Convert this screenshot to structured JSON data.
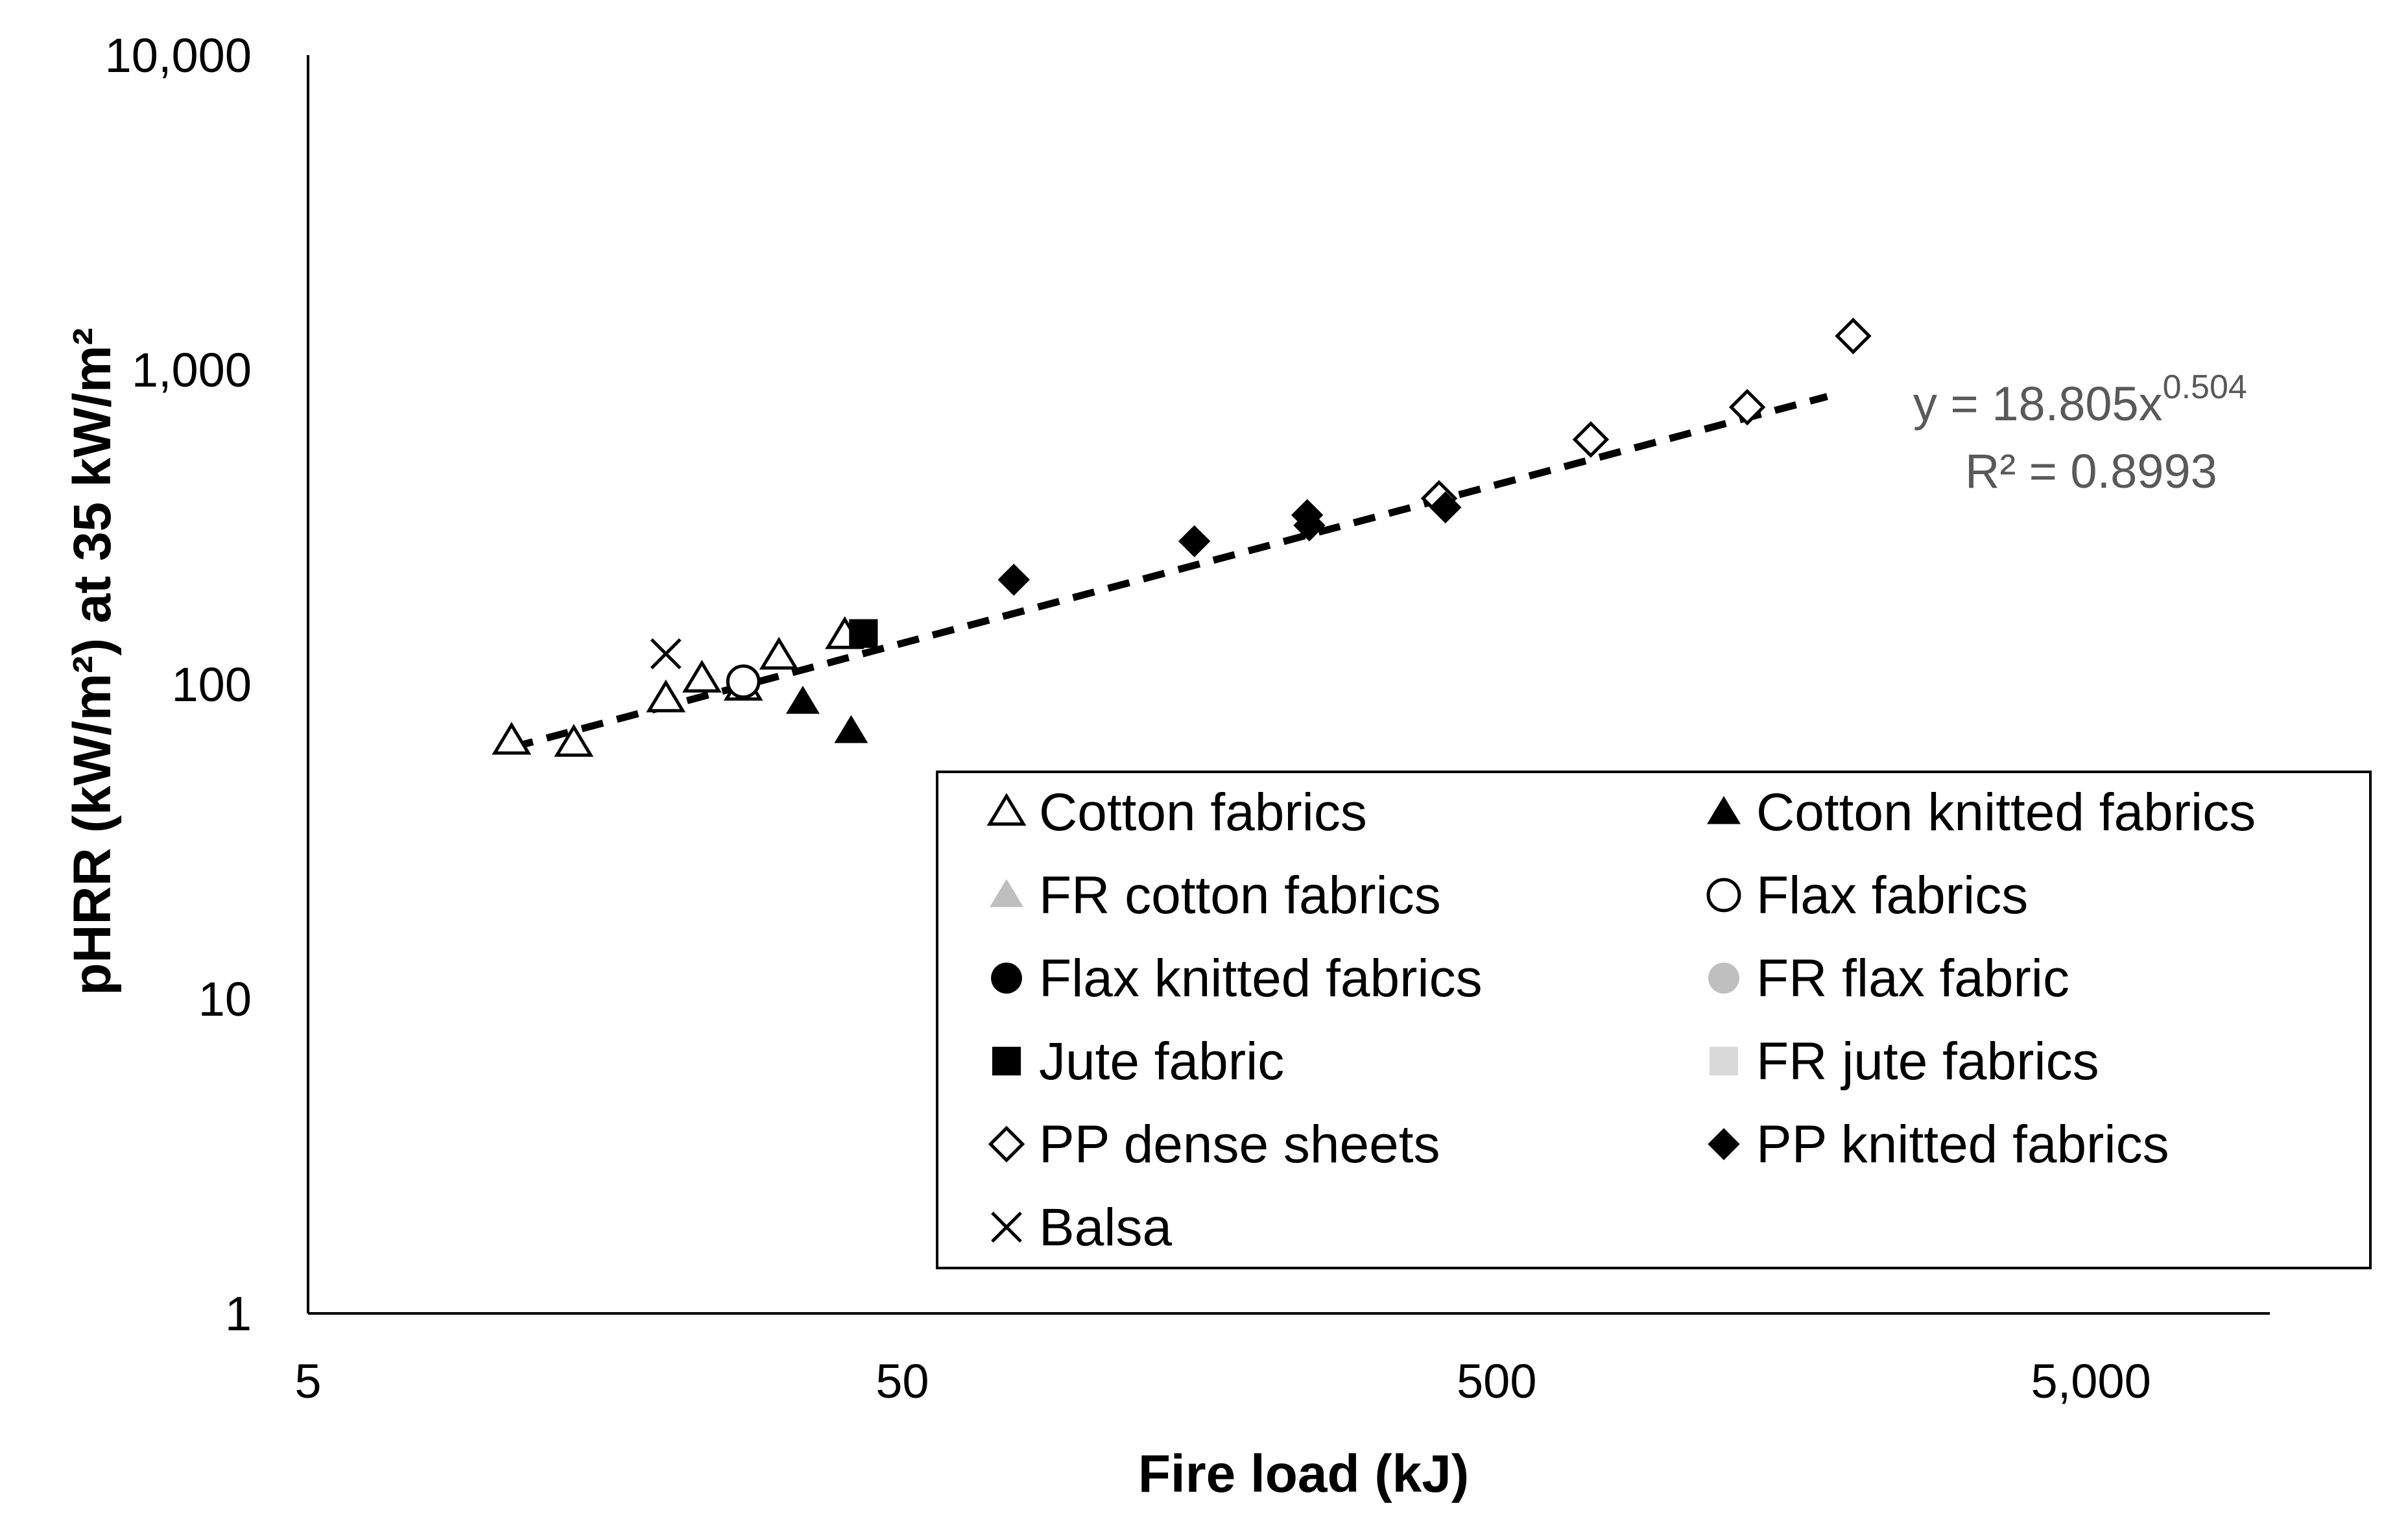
{
  "chart_data": {
    "type": "scatter",
    "x_scale": "log",
    "y_scale": "log",
    "xlabel": "Fire load (kJ)",
    "ylabel": "pHRR (kW/m²) at 35 kW/m²",
    "xlim": [
      5,
      10000
    ],
    "ylim": [
      1,
      10000
    ],
    "x_ticks": [
      {
        "value": 5,
        "label": "5"
      },
      {
        "value": 50,
        "label": "50"
      },
      {
        "value": 500,
        "label": "500"
      },
      {
        "value": 5000,
        "label": "5,000"
      }
    ],
    "y_ticks": [
      {
        "value": 1,
        "label": "1"
      },
      {
        "value": 10,
        "label": "10"
      },
      {
        "value": 100,
        "label": "100"
      },
      {
        "value": 1000,
        "label": "1,000"
      },
      {
        "value": 10000,
        "label": "10,000"
      }
    ],
    "legend_position": "bottom-right",
    "series": [
      {
        "name": "Cotton fabrics",
        "marker": "triangle-open",
        "color": "#000000",
        "points": [
          [
            11,
            66
          ],
          [
            14,
            65
          ],
          [
            20,
            90
          ],
          [
            23,
            104
          ],
          [
            27,
            98
          ],
          [
            31,
            123
          ],
          [
            40,
            143
          ]
        ]
      },
      {
        "name": "Cotton knitted fabrics",
        "marker": "triangle-filled",
        "color": "#000000",
        "points": [
          [
            34,
            88
          ],
          [
            41,
            71
          ]
        ]
      },
      {
        "name": "FR cotton fabrics",
        "marker": "triangle-filled",
        "color": "#bfbfbf",
        "points": []
      },
      {
        "name": "Flax fabrics",
        "marker": "circle-open",
        "color": "#000000",
        "points": [
          [
            27,
            102
          ]
        ]
      },
      {
        "name": "Flax knitted fabrics",
        "marker": "circle-filled",
        "color": "#000000",
        "points": []
      },
      {
        "name": "FR flax fabric",
        "marker": "circle-filled",
        "color": "#bfbfbf",
        "points": []
      },
      {
        "name": "Jute fabric",
        "marker": "square-filled",
        "color": "#000000",
        "points": [
          [
            43,
            145
          ]
        ]
      },
      {
        "name": "FR jute fabrics",
        "marker": "square-filled",
        "color": "#d9d9d9",
        "points": []
      },
      {
        "name": "PP dense sheets",
        "marker": "diamond-open",
        "color": "#000000",
        "points": [
          [
            400,
            390
          ],
          [
            720,
            600
          ],
          [
            1320,
            760
          ],
          [
            1990,
            1280
          ]
        ]
      },
      {
        "name": "PP knitted fabrics",
        "marker": "diamond-filled",
        "color": "#000000",
        "points": [
          [
            77,
            215
          ],
          [
            155,
            285
          ],
          [
            240,
            345
          ],
          [
            242,
            320
          ],
          [
            410,
            365
          ]
        ]
      },
      {
        "name": "Balsa",
        "marker": "x",
        "color": "#000000",
        "points": [
          [
            20,
            125
          ]
        ]
      }
    ],
    "trendline": {
      "type": "power",
      "coefficient": 18.805,
      "exponent": 0.504,
      "x_range": [
        11,
        1800
      ],
      "style": "dashed",
      "equation_prefix": "y = 18.805x",
      "equation_exponent": "0.504",
      "r_squared": "R² = 0.8993",
      "label_color": "#595959"
    }
  }
}
